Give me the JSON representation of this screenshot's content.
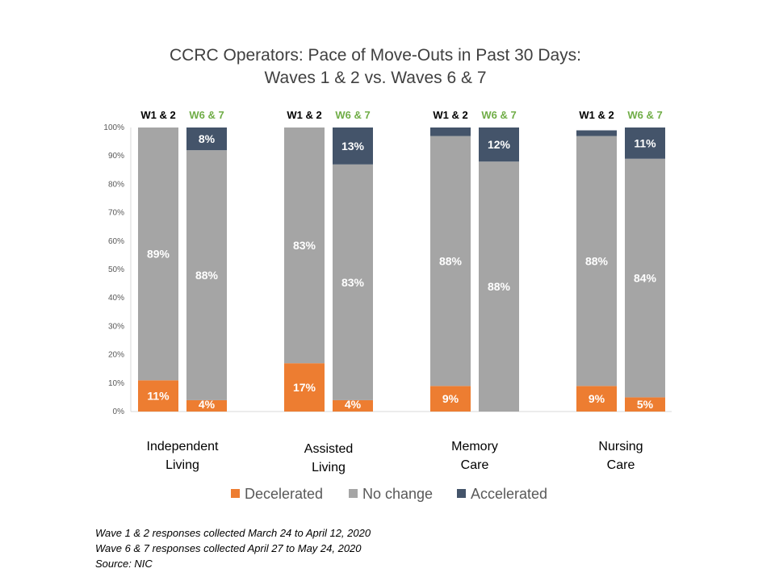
{
  "chart_data": {
    "type": "bar",
    "title": "CCRC Operators: Pace of Move-Outs in Past 30 Days:",
    "subtitle": "Waves 1 & 2 vs. Waves 6 & 7",
    "xlabel": "",
    "ylabel": "",
    "ylim": [
      0,
      100
    ],
    "y_ticks": [
      "0%",
      "10%",
      "20%",
      "30%",
      "40%",
      "50%",
      "60%",
      "70%",
      "80%",
      "90%",
      "100%"
    ],
    "stacked": true,
    "legend_position": "bottom",
    "grid": false,
    "wave_labels": [
      "W1 & 2",
      "W6 & 7"
    ],
    "categories": [
      {
        "label_lines": [
          "Independent",
          "Living"
        ]
      },
      {
        "label_lines": [
          "Assisted",
          "Living"
        ]
      },
      {
        "label_lines": [
          "Memory",
          "Care"
        ]
      },
      {
        "label_lines": [
          "Nursing",
          "Care"
        ]
      }
    ],
    "series": [
      {
        "name": "Decelerated",
        "color": "#ED7D31",
        "values": [
          [
            11,
            4
          ],
          [
            17,
            4
          ],
          [
            9,
            0
          ],
          [
            9,
            5
          ]
        ],
        "labels": [
          [
            "11%",
            "4%"
          ],
          [
            "17%",
            "4%"
          ],
          [
            "9%",
            ""
          ],
          [
            "9%",
            "5%"
          ]
        ]
      },
      {
        "name": "No change",
        "color": "#A5A5A5",
        "values": [
          [
            89,
            88
          ],
          [
            83,
            83
          ],
          [
            88,
            88
          ],
          [
            88,
            84
          ]
        ],
        "labels": [
          [
            "89%",
            "88%"
          ],
          [
            "83%",
            "83%"
          ],
          [
            "88%",
            "88%"
          ],
          [
            "88%",
            "84%"
          ]
        ]
      },
      {
        "name": "Accelerated",
        "color": "#44546A",
        "values": [
          [
            0,
            8
          ],
          [
            0,
            13
          ],
          [
            3,
            12
          ],
          [
            2,
            11
          ]
        ],
        "labels": [
          [
            "",
            "8%"
          ],
          [
            "",
            "13%"
          ],
          [
            "",
            "12%"
          ],
          [
            "",
            "11%"
          ]
        ]
      }
    ]
  },
  "colors": {
    "wave1_label": "#000000",
    "wave2_label": "#70AD47",
    "data_label": "#ffffff"
  },
  "notes": {
    "line1": "Wave 1 & 2 responses collected March 24 to April 12, 2020",
    "line2": "Wave 6 & 7 responses collected April 27 to May 24, 2020",
    "source": "Source: NIC"
  }
}
